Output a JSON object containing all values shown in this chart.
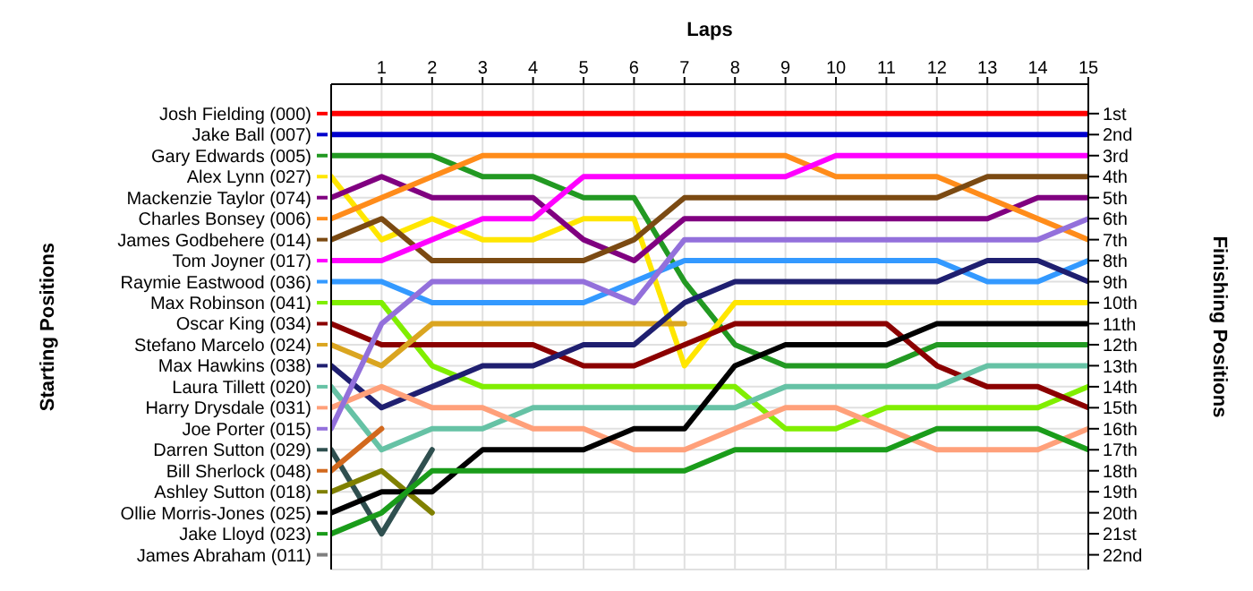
{
  "chart_data": {
    "type": "line",
    "xlabel": "Laps",
    "ylabel": "Finishing Positions",
    "legend_title": "Starting Positions",
    "legend": "left",
    "x": [
      0,
      1,
      2,
      3,
      4,
      5,
      6,
      7,
      8,
      9,
      10,
      11,
      12,
      13,
      14,
      15
    ],
    "xlim": [
      0,
      15
    ],
    "xticks": [
      1,
      2,
      3,
      4,
      5,
      6,
      7,
      8,
      9,
      10,
      11,
      12,
      13,
      14,
      15
    ],
    "ylim": [
      22.7,
      -0.4
    ],
    "yticks": [
      {
        "value": 1,
        "label": "1st"
      },
      {
        "value": 2,
        "label": "2nd"
      },
      {
        "value": 3,
        "label": "3rd"
      },
      {
        "value": 4,
        "label": "4th"
      },
      {
        "value": 5,
        "label": "5th"
      },
      {
        "value": 6,
        "label": "6th"
      },
      {
        "value": 7,
        "label": "7th"
      },
      {
        "value": 8,
        "label": "8th"
      },
      {
        "value": 9,
        "label": "9th"
      },
      {
        "value": 10,
        "label": "10th"
      },
      {
        "value": 11,
        "label": "11th"
      },
      {
        "value": 12,
        "label": "12th"
      },
      {
        "value": 13,
        "label": "13th"
      },
      {
        "value": 14,
        "label": "14th"
      },
      {
        "value": 15,
        "label": "15th"
      },
      {
        "value": 16,
        "label": "16th"
      },
      {
        "value": 17,
        "label": "17th"
      },
      {
        "value": 18,
        "label": "18th"
      },
      {
        "value": 19,
        "label": "19th"
      },
      {
        "value": 20,
        "label": "20th"
      },
      {
        "value": 21,
        "label": "21st"
      },
      {
        "value": 22,
        "label": "22nd"
      }
    ],
    "grid": true,
    "marker": "none",
    "line_style": "solid",
    "series": [
      {
        "name": "Josh Fielding (000)",
        "color": "#ff0000",
        "values": [
          1,
          1,
          1,
          1,
          1,
          1,
          1,
          1,
          1,
          1,
          1,
          1,
          1,
          1,
          1,
          1
        ]
      },
      {
        "name": "Jake Ball (007)",
        "color": "#0000cc",
        "values": [
          2,
          2,
          2,
          2,
          2,
          2,
          2,
          2,
          2,
          2,
          2,
          2,
          2,
          2,
          2,
          2
        ]
      },
      {
        "name": "Gary Edwards (005)",
        "color": "#229922",
        "values": [
          3,
          3,
          3,
          4,
          4,
          5,
          5,
          9,
          12,
          13,
          13,
          13,
          12,
          12,
          12,
          12
        ]
      },
      {
        "name": "Alex Lynn (027)",
        "color": "#ffe600",
        "values": [
          4,
          7,
          6,
          7,
          7,
          6,
          6,
          13,
          10,
          10,
          10,
          10,
          10,
          10,
          10,
          10
        ]
      },
      {
        "name": "Mackenzie Taylor (074)",
        "color": "#800080",
        "values": [
          5,
          4,
          5,
          5,
          5,
          7,
          8,
          6,
          6,
          6,
          6,
          6,
          6,
          6,
          5,
          5
        ]
      },
      {
        "name": "Charles Bonsey (006)",
        "color": "#ff8c1a",
        "values": [
          6,
          5,
          4,
          3,
          3,
          3,
          3,
          3,
          3,
          3,
          4,
          4,
          4,
          5,
          6,
          7
        ]
      },
      {
        "name": "James Godbehere (014)",
        "color": "#7b4a12",
        "values": [
          7,
          6,
          8,
          8,
          8,
          8,
          7,
          5,
          5,
          5,
          5,
          5,
          5,
          4,
          4,
          4
        ]
      },
      {
        "name": "Tom Joyner (017)",
        "color": "#ff00ff",
        "values": [
          8,
          8,
          7,
          6,
          6,
          4,
          4,
          4,
          4,
          4,
          3,
          3,
          3,
          3,
          3,
          3
        ]
      },
      {
        "name": "Raymie Eastwood (036)",
        "color": "#3399ff",
        "values": [
          9,
          9,
          10,
          10,
          10,
          10,
          9,
          8,
          8,
          8,
          8,
          8,
          8,
          9,
          9,
          8
        ]
      },
      {
        "name": "Max Robinson (041)",
        "color": "#80ee00",
        "values": [
          10,
          10,
          13,
          14,
          14,
          14,
          14,
          14,
          14,
          16,
          16,
          15,
          15,
          15,
          15,
          14
        ]
      },
      {
        "name": "Oscar King (034)",
        "color": "#8b0000",
        "values": [
          11,
          12,
          12,
          12,
          12,
          13,
          13,
          12,
          11,
          11,
          11,
          11,
          13,
          14,
          14,
          15
        ]
      },
      {
        "name": "Stefano Marcelo (024)",
        "color": "#daa520",
        "values": [
          12,
          13,
          11,
          11,
          11,
          11,
          11,
          11,
          null,
          null,
          null,
          null,
          null,
          null,
          null,
          null
        ]
      },
      {
        "name": "Max Hawkins (038)",
        "color": "#1f1f70",
        "values": [
          13,
          15,
          14,
          13,
          13,
          12,
          12,
          10,
          9,
          9,
          9,
          9,
          9,
          8,
          8,
          9
        ]
      },
      {
        "name": "Laura Tillett (020)",
        "color": "#66c2a5",
        "values": [
          14,
          17,
          16,
          16,
          15,
          15,
          15,
          15,
          15,
          14,
          14,
          14,
          14,
          13,
          13,
          13
        ]
      },
      {
        "name": "Harry Drysdale (031)",
        "color": "#ffa07a",
        "values": [
          15,
          14,
          15,
          15,
          16,
          16,
          17,
          17,
          16,
          15,
          15,
          16,
          17,
          17,
          17,
          16
        ]
      },
      {
        "name": "Joe Porter (015)",
        "color": "#9370db",
        "values": [
          16,
          11,
          9,
          9,
          9,
          9,
          10,
          7,
          7,
          7,
          7,
          7,
          7,
          7,
          7,
          6
        ]
      },
      {
        "name": "Darren Sutton (029)",
        "color": "#2f4f4f",
        "values": [
          17,
          21,
          17,
          null,
          null,
          null,
          null,
          null,
          null,
          null,
          null,
          null,
          null,
          null,
          null,
          null
        ]
      },
      {
        "name": "Bill Sherlock (048)",
        "color": "#d2691e",
        "values": [
          18,
          16,
          null,
          null,
          null,
          null,
          null,
          null,
          null,
          null,
          null,
          null,
          null,
          null,
          null,
          null
        ]
      },
      {
        "name": "Ashley Sutton (018)",
        "color": "#808000",
        "values": [
          19,
          18,
          20,
          null,
          null,
          null,
          null,
          null,
          null,
          null,
          null,
          null,
          null,
          null,
          null,
          null
        ]
      },
      {
        "name": "Ollie Morris-Jones (025)",
        "color": "#000000",
        "values": [
          20,
          19,
          19,
          17,
          17,
          17,
          16,
          16,
          13,
          12,
          12,
          12,
          11,
          11,
          11,
          11
        ]
      },
      {
        "name": "Jake Lloyd (023)",
        "color": "#1a9c1a",
        "values": [
          21,
          20,
          18,
          18,
          18,
          18,
          18,
          18,
          17,
          17,
          17,
          17,
          16,
          16,
          16,
          17
        ]
      },
      {
        "name": "James Abraham (011)",
        "color": "#808080",
        "values": [
          null,
          null,
          null,
          null,
          null,
          null,
          null,
          null,
          null,
          null,
          null,
          null,
          null,
          null,
          null,
          null
        ]
      }
    ]
  }
}
